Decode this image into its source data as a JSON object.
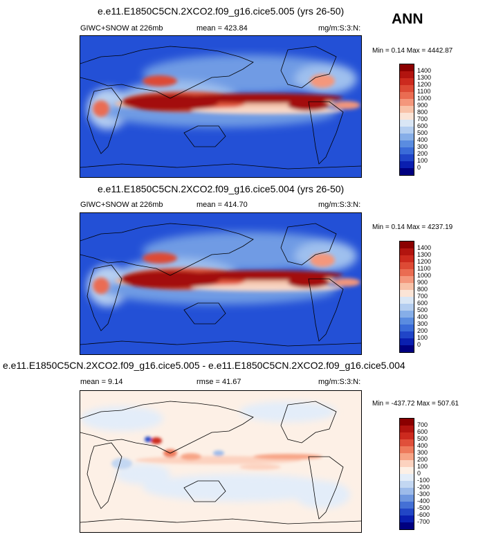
{
  "season": "ANN",
  "panels": [
    {
      "title": "e.e11.E1850C5CN.2XCO2.f09_g16.cice5.005 (yrs 26-50)",
      "variable": "GIWC+SNOW at 226mb",
      "mean": "mean = 423.84",
      "units": "mg/m:S:3:N:",
      "minmax": "Min = 0.14 Max = 4442.87",
      "colorbar_labels": [
        "1400",
        "1300",
        "1200",
        "1100",
        "1000",
        "900",
        "800",
        "700",
        "600",
        "500",
        "400",
        "300",
        "200",
        "100",
        "0"
      ]
    },
    {
      "title": "e.e11.E1850C5CN.2XCO2.f09_g16.cice5.004 (yrs 26-50)",
      "variable": "GIWC+SNOW at 226mb",
      "mean": "mean = 414.70",
      "units": "mg/m:S:3:N:",
      "minmax": "Min = 0.14 Max = 4237.19",
      "colorbar_labels": [
        "1400",
        "1300",
        "1200",
        "1100",
        "1000",
        "900",
        "800",
        "700",
        "600",
        "500",
        "400",
        "300",
        "200",
        "100",
        "0"
      ]
    },
    {
      "title": "e.e11.E1850C5CN.2XCO2.f09_g16.cice5.005 - e.e11.E1850C5CN.2XCO2.f09_g16.cice5.004",
      "mean": "mean = 9.14",
      "rmse": "rmse = 41.67",
      "units": "mg/m:S:3:N:",
      "minmax": "Min = -437.72 Max = 507.61",
      "colorbar_labels": [
        "700",
        "600",
        "500",
        "400",
        "300",
        "200",
        "100",
        "0",
        "-100",
        "-200",
        "-300",
        "-400",
        "-500",
        "-600",
        "-700"
      ]
    }
  ],
  "colors": {
    "abs_scale": [
      "#8b0000",
      "#b2140f",
      "#cc2a1e",
      "#dd4a35",
      "#ea6c52",
      "#f4977c",
      "#f8c2a8",
      "#fbe4d6",
      "#d9e6f5",
      "#b3cdf0",
      "#86aee8",
      "#5a8ce0",
      "#3a6bd8",
      "#2045c8",
      "#0a1fb0",
      "#000080"
    ],
    "diff_scale": [
      "#8b0000",
      "#b2140f",
      "#cc2a1e",
      "#e04f3a",
      "#ee7a5c",
      "#f7a486",
      "#fcd2bf",
      "#fdf0e6",
      "#e3edf9",
      "#c3d7f2",
      "#9dbbea",
      "#6f97df",
      "#4470d5",
      "#2246c6",
      "#0a1fb0",
      "#000080"
    ]
  },
  "chart_data": [
    {
      "type": "heatmap",
      "title": "e.e11.E1850C5CN.2XCO2.f09_g16.cice5.005 (yrs 26-50)",
      "field": "GIWC+SNOW at 226mb",
      "units": "mg/m:S:3:N:",
      "mean": 423.84,
      "min": 0.14,
      "max": 4442.87,
      "contour_levels": [
        0,
        100,
        200,
        300,
        400,
        500,
        600,
        700,
        800,
        900,
        1000,
        1100,
        1200,
        1300,
        1400
      ]
    },
    {
      "type": "heatmap",
      "title": "e.e11.E1850C5CN.2XCO2.f09_g16.cice5.004 (yrs 26-50)",
      "field": "GIWC+SNOW at 226mb",
      "units": "mg/m:S:3:N:",
      "mean": 414.7,
      "min": 0.14,
      "max": 4237.19,
      "contour_levels": [
        0,
        100,
        200,
        300,
        400,
        500,
        600,
        700,
        800,
        900,
        1000,
        1100,
        1200,
        1300,
        1400
      ]
    },
    {
      "type": "heatmap",
      "title": "e.e11.E1850C5CN.2XCO2.f09_g16.cice5.005 - e.e11.E1850C5CN.2XCO2.f09_g16.cice5.004",
      "units": "mg/m:S:3:N:",
      "mean": 9.14,
      "rmse": 41.67,
      "min": -437.72,
      "max": 507.61,
      "contour_levels": [
        -700,
        -600,
        -500,
        -400,
        -300,
        -200,
        -100,
        0,
        100,
        200,
        300,
        400,
        500,
        600,
        700
      ]
    }
  ]
}
